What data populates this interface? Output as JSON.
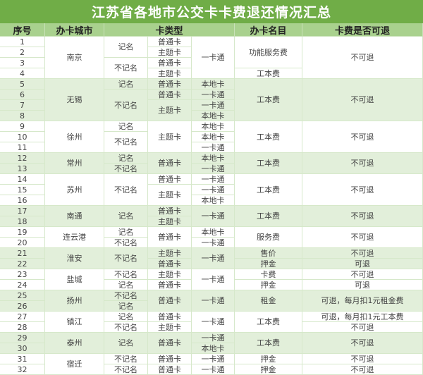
{
  "title": "江苏省各地市公交卡卡费退还情况汇总",
  "headers": {
    "seq": "序号",
    "city": "办卡城市",
    "card_type": "卡类型",
    "fee_item": "办卡名目",
    "refundable": "卡费是否可退"
  },
  "colors": {
    "title_bg": "#70ad47",
    "header_bg": "#a9d18e",
    "band_green": "#e2efda",
    "band_white": "#ffffff"
  },
  "columns": {
    "city": [
      [
        "南京",
        4
      ],
      [
        "无锡",
        4
      ],
      [
        "徐州",
        3
      ],
      [
        "常州",
        2
      ],
      [
        "苏州",
        3
      ],
      [
        "南通",
        2
      ],
      [
        "连云港",
        2
      ],
      [
        "淮安",
        2
      ],
      [
        "盐城",
        2
      ],
      [
        "扬州",
        2
      ],
      [
        "镇江",
        2
      ],
      [
        "泰州",
        2
      ],
      [
        "宿迁",
        2
      ]
    ],
    "registration": [
      [
        "记名",
        2
      ],
      [
        "不记名",
        2
      ],
      [
        "记名",
        1
      ],
      [
        "不记名",
        3
      ],
      [
        "记名",
        1
      ],
      [
        "不记名",
        2
      ],
      [
        "记名",
        1
      ],
      [
        "不记名",
        1
      ],
      [
        "不记名",
        3
      ],
      [
        "记名",
        2
      ],
      [
        "记名",
        1
      ],
      [
        "不记名",
        1
      ],
      [
        "不记名",
        2
      ],
      [
        "不记名",
        1
      ],
      [
        "记名",
        1
      ],
      [
        "不记名",
        1
      ],
      [
        "记名",
        1
      ],
      [
        "记名",
        1
      ],
      [
        "不记名",
        1
      ],
      [
        "记名",
        2
      ],
      [
        "不记名",
        1
      ],
      [
        "不记名",
        1
      ]
    ],
    "card_kind": [
      [
        "普通卡",
        1
      ],
      [
        "主题卡",
        1
      ],
      [
        "普通卡",
        1
      ],
      [
        "主题卡",
        1
      ],
      [
        "普通卡",
        1
      ],
      [
        "普通卡",
        1
      ],
      [
        "主题卡",
        2
      ],
      [
        "主题卡",
        3
      ],
      [
        "普通卡",
        2
      ],
      [
        "普通卡",
        1
      ],
      [
        "主题卡",
        2
      ],
      [
        "普通卡",
        1
      ],
      [
        "主题卡",
        1
      ],
      [
        "普通卡",
        2
      ],
      [
        "主题卡",
        1
      ],
      [
        "普通卡",
        1
      ],
      [
        "主题卡",
        1
      ],
      [
        "普通卡",
        1
      ],
      [
        "普通卡",
        2
      ],
      [
        "普通卡",
        1
      ],
      [
        "主题卡",
        1
      ],
      [
        "普通卡",
        2
      ],
      [
        "普通卡",
        1
      ],
      [
        "普通卡",
        1
      ]
    ],
    "network": [
      [
        "一卡通",
        4
      ],
      [
        "本地卡",
        1
      ],
      [
        "一卡通",
        1
      ],
      [
        "一卡通",
        1
      ],
      [
        "本地卡",
        1
      ],
      [
        "本地卡",
        1
      ],
      [
        "本地卡",
        1
      ],
      [
        "一卡通",
        1
      ],
      [
        "本地卡",
        1
      ],
      [
        "一卡通",
        1
      ],
      [
        "一卡通",
        1
      ],
      [
        "一卡通",
        1
      ],
      [
        "本地卡",
        1
      ],
      [
        "一卡通",
        2
      ],
      [
        "本地卡",
        1
      ],
      [
        "一卡通",
        1
      ],
      [
        "一卡通",
        2
      ],
      [
        "一卡通",
        2
      ],
      [
        "一卡通",
        2
      ],
      [
        "一卡通",
        2
      ],
      [
        "一卡通",
        1
      ],
      [
        "本地卡",
        1
      ],
      [
        "一卡通",
        1
      ],
      [
        "一卡通",
        1
      ]
    ],
    "fee_item": [
      [
        "功能服务费",
        3
      ],
      [
        "工本费",
        1
      ],
      [
        "工本费",
        4
      ],
      [
        "工本费",
        3
      ],
      [
        "工本费",
        2
      ],
      [
        "工本费",
        3
      ],
      [
        "工本费",
        2
      ],
      [
        "服务费",
        2
      ],
      [
        "售价",
        1
      ],
      [
        "押金",
        1
      ],
      [
        "卡费",
        1
      ],
      [
        "押金",
        1
      ],
      [
        "租金",
        2
      ],
      [
        "工本费",
        2
      ],
      [
        "工本费",
        2
      ],
      [
        "押金",
        1
      ],
      [
        "押金",
        1
      ]
    ],
    "refundable": [
      [
        "不可退",
        4
      ],
      [
        "不可退",
        4
      ],
      [
        "不可退",
        3
      ],
      [
        "不可退",
        2
      ],
      [
        "不可退",
        3
      ],
      [
        "不可退",
        2
      ],
      [
        "不可退",
        2
      ],
      [
        "不可退",
        1
      ],
      [
        "可退",
        1
      ],
      [
        "不可退",
        1
      ],
      [
        "可退",
        1
      ],
      [
        "可退，每月扣1元租金费",
        2
      ],
      [
        "可退，每月扣1元工本费",
        1
      ],
      [
        "不可退",
        1
      ],
      [
        "不可退",
        2
      ],
      [
        "不可退",
        1
      ],
      [
        "不可退",
        1
      ]
    ]
  }
}
